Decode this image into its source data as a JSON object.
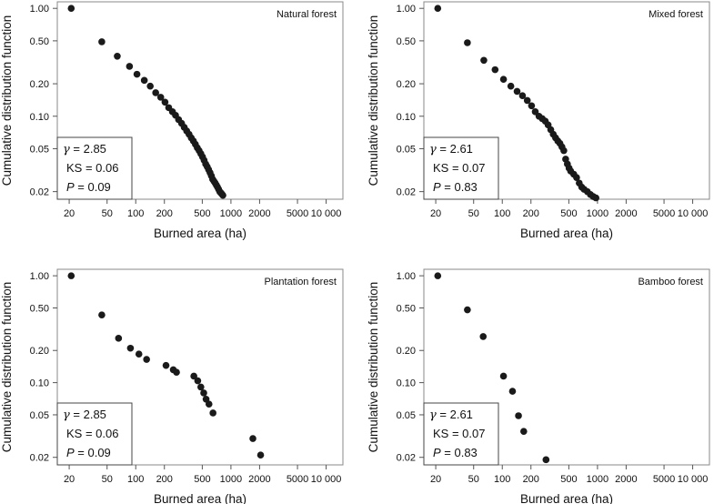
{
  "chart_data": [
    {
      "type": "scatter",
      "panel_label": "Natural forest",
      "xlabel": "Burned area (ha)",
      "ylabel": "Cumulative distribution function",
      "x_scale": "log",
      "y_scale": "log",
      "xlim": [
        15,
        15000
      ],
      "ylim": [
        0.017,
        1.15
      ],
      "x_ticks": [
        20,
        50,
        100,
        200,
        500,
        1000,
        2000,
        5000,
        10000
      ],
      "x_tick_labels": [
        "20",
        "50",
        "100",
        "200",
        "500",
        "1000",
        "2000",
        "5000",
        "10 000"
      ],
      "y_ticks": [
        1.0,
        0.5,
        0.2,
        0.1,
        0.05,
        0.02
      ],
      "y_tick_labels": [
        "1.00",
        "0.50",
        "0.20",
        "0.10",
        "0.05",
        "0.02"
      ],
      "stats": {
        "gamma": "= 2.85",
        "ks": "KS = 0.06",
        "p": "= 0.09"
      },
      "points": [
        [
          21,
          1.0
        ],
        [
          44,
          0.49
        ],
        [
          64,
          0.36
        ],
        [
          86,
          0.29
        ],
        [
          103,
          0.245
        ],
        [
          123,
          0.215
        ],
        [
          142,
          0.19
        ],
        [
          162,
          0.165
        ],
        [
          183,
          0.15
        ],
        [
          203,
          0.135
        ],
        [
          222,
          0.12
        ],
        [
          243,
          0.11
        ],
        [
          262,
          0.102
        ],
        [
          282,
          0.093
        ],
        [
          303,
          0.086
        ],
        [
          323,
          0.079
        ],
        [
          343,
          0.073
        ],
        [
          363,
          0.068
        ],
        [
          383,
          0.063
        ],
        [
          403,
          0.059
        ],
        [
          423,
          0.055
        ],
        [
          443,
          0.051
        ],
        [
          463,
          0.048
        ],
        [
          483,
          0.045
        ],
        [
          503,
          0.042
        ],
        [
          523,
          0.039
        ],
        [
          543,
          0.036
        ],
        [
          563,
          0.034
        ],
        [
          583,
          0.032
        ],
        [
          603,
          0.03
        ],
        [
          623,
          0.028
        ],
        [
          643,
          0.026
        ],
        [
          663,
          0.025
        ],
        [
          683,
          0.024
        ],
        [
          703,
          0.023
        ],
        [
          723,
          0.022
        ],
        [
          743,
          0.021
        ],
        [
          763,
          0.02
        ],
        [
          783,
          0.0195
        ],
        [
          803,
          0.019
        ],
        [
          823,
          0.0185
        ]
      ]
    },
    {
      "type": "scatter",
      "panel_label": "Mixed forest",
      "xlabel": "Burned area (ha)",
      "ylabel": "Cumulative distribution function",
      "x_scale": "log",
      "y_scale": "log",
      "xlim": [
        15,
        15000
      ],
      "ylim": [
        0.017,
        1.15
      ],
      "x_ticks": [
        20,
        50,
        100,
        200,
        500,
        1000,
        2000,
        5000,
        10000
      ],
      "x_tick_labels": [
        "20",
        "50",
        "100",
        "200",
        "500",
        "1000",
        "2000",
        "5000",
        "10 000"
      ],
      "y_ticks": [
        1.0,
        0.5,
        0.2,
        0.1,
        0.05,
        0.02
      ],
      "y_tick_labels": [
        "1.00",
        "0.50",
        "0.20",
        "0.10",
        "0.05",
        "0.02"
      ],
      "stats": {
        "gamma": "= 2.61",
        "ks": "KS = 0.07",
        "p": "= 0.83"
      },
      "points": [
        [
          21,
          1.0
        ],
        [
          43,
          0.48
        ],
        [
          64,
          0.33
        ],
        [
          84,
          0.27
        ],
        [
          103,
          0.22
        ],
        [
          123,
          0.19
        ],
        [
          143,
          0.17
        ],
        [
          163,
          0.155
        ],
        [
          183,
          0.14
        ],
        [
          203,
          0.125
        ],
        [
          222,
          0.11
        ],
        [
          243,
          0.1
        ],
        [
          263,
          0.095
        ],
        [
          283,
          0.09
        ],
        [
          303,
          0.083
        ],
        [
          323,
          0.075
        ],
        [
          343,
          0.068
        ],
        [
          363,
          0.063
        ],
        [
          383,
          0.059
        ],
        [
          403,
          0.056
        ],
        [
          423,
          0.052
        ],
        [
          443,
          0.048
        ],
        [
          463,
          0.04
        ],
        [
          483,
          0.036
        ],
        [
          503,
          0.033
        ],
        [
          523,
          0.031
        ],
        [
          563,
          0.029
        ],
        [
          603,
          0.027
        ],
        [
          643,
          0.024
        ],
        [
          683,
          0.022
        ],
        [
          723,
          0.021
        ],
        [
          783,
          0.02
        ],
        [
          843,
          0.0188
        ],
        [
          903,
          0.018
        ],
        [
          963,
          0.0175
        ]
      ]
    },
    {
      "type": "scatter",
      "panel_label": "Plantation forest",
      "xlabel": "Burned area (ha)",
      "ylabel": "Cumulative distribution function",
      "x_scale": "log",
      "y_scale": "log",
      "xlim": [
        15,
        15000
      ],
      "ylim": [
        0.017,
        1.15
      ],
      "x_ticks": [
        20,
        50,
        100,
        200,
        500,
        1000,
        2000,
        5000,
        10000
      ],
      "x_tick_labels": [
        "20",
        "50",
        "100",
        "200",
        "500",
        "1000",
        "2000",
        "5000",
        "10 000"
      ],
      "y_ticks": [
        1.0,
        0.5,
        0.2,
        0.1,
        0.05,
        0.02
      ],
      "y_tick_labels": [
        "1.00",
        "0.50",
        "0.20",
        "0.10",
        "0.05",
        "0.02"
      ],
      "stats": {
        "gamma": "= 2.85",
        "ks": "KS = 0.06",
        "p": "= 0.09"
      },
      "points": [
        [
          21,
          1.0
        ],
        [
          44,
          0.43
        ],
        [
          66,
          0.26
        ],
        [
          88,
          0.21
        ],
        [
          108,
          0.185
        ],
        [
          130,
          0.165
        ],
        [
          208,
          0.145
        ],
        [
          248,
          0.132
        ],
        [
          268,
          0.125
        ],
        [
          408,
          0.115
        ],
        [
          448,
          0.104
        ],
        [
          483,
          0.091
        ],
        [
          518,
          0.08
        ],
        [
          548,
          0.07
        ],
        [
          588,
          0.063
        ],
        [
          648,
          0.052
        ],
        [
          1700,
          0.03
        ],
        [
          2050,
          0.021
        ]
      ]
    },
    {
      "type": "scatter",
      "panel_label": "Bamboo forest",
      "xlabel": "Burned area (ha)",
      "ylabel": "Cumulative distribution function",
      "x_scale": "log",
      "y_scale": "log",
      "xlim": [
        15,
        15000
      ],
      "ylim": [
        0.017,
        1.15
      ],
      "x_ticks": [
        20,
        50,
        100,
        200,
        500,
        1000,
        2000,
        5000,
        10000
      ],
      "x_tick_labels": [
        "20",
        "50",
        "100",
        "200",
        "500",
        "1000",
        "2000",
        "5000",
        "10 000"
      ],
      "y_ticks": [
        1.0,
        0.5,
        0.2,
        0.1,
        0.05,
        0.02
      ],
      "y_tick_labels": [
        "1.00",
        "0.50",
        "0.20",
        "0.10",
        "0.05",
        "0.02"
      ],
      "stats": {
        "gamma": "= 2.61",
        "ks": "KS = 0.07",
        "p": "= 0.83"
      },
      "points": [
        [
          21,
          1.0
        ],
        [
          43,
          0.48
        ],
        [
          63,
          0.27
        ],
        [
          103,
          0.115
        ],
        [
          128,
          0.083
        ],
        [
          148,
          0.049
        ],
        [
          168,
          0.035
        ],
        [
          288,
          0.019
        ]
      ]
    }
  ]
}
